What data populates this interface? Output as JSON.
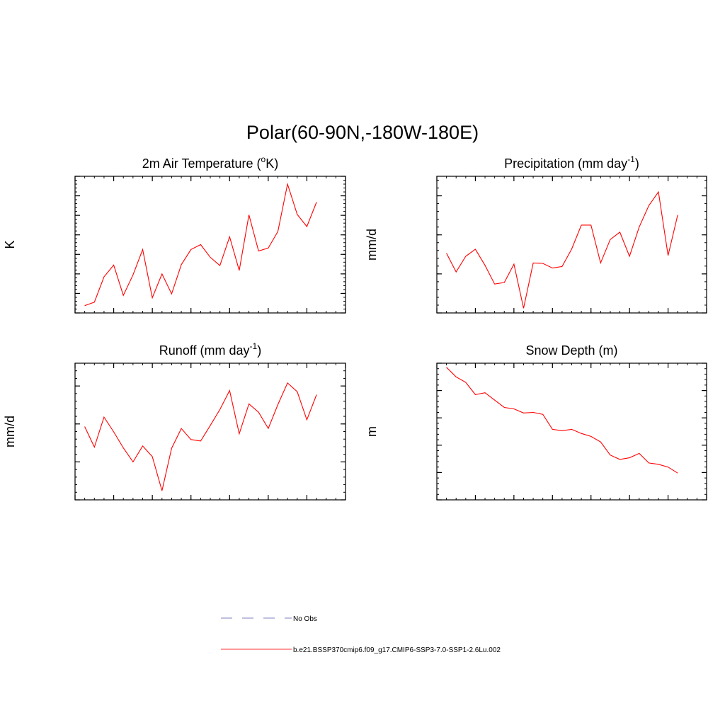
{
  "page": {
    "title": "Polar(60-90N,-180W-180E)"
  },
  "chart_data": [
    {
      "type": "line",
      "title": "2m Air Temperature (",
      "title_sup": "o",
      "title_tail": "K)",
      "ylabel": "K",
      "xlim": [
        2064,
        2092
      ],
      "ylim": [
        269.2,
        272.0
      ],
      "x_ticks": [
        "2064",
        "2068",
        "2072",
        "2076",
        "2080",
        "2084",
        "2088",
        "2092"
      ],
      "y_ticks": [
        "269.2",
        "269.6",
        "270.0",
        "270.4",
        "270.8",
        "271.2",
        "271.6",
        "272.0"
      ],
      "series": [
        {
          "x": [
            2065,
            2066,
            2067,
            2068,
            2069,
            2070,
            2071,
            2072,
            2073,
            2074,
            2075,
            2076,
            2077,
            2078,
            2079,
            2080,
            2081,
            2082,
            2083,
            2084,
            2085,
            2086,
            2087,
            2088,
            2089
          ],
          "values": [
            269.35,
            269.42,
            269.94,
            270.18,
            269.56,
            269.98,
            270.5,
            269.51,
            270.0,
            269.59,
            270.19,
            270.5,
            270.6,
            270.34,
            270.17,
            270.76,
            270.07,
            271.21,
            270.47,
            270.53,
            270.87,
            271.84,
            271.22,
            270.97,
            271.47
          ]
        }
      ]
    },
    {
      "type": "line",
      "title": "Precipitation (mm day",
      "title_sup": "-1",
      "title_tail": ")",
      "ylabel": "mm/d",
      "xlim": [
        2064,
        2092
      ],
      "ylim": [
        1.5,
        1.85
      ],
      "x_ticks": [
        "2064",
        "2068",
        "2072",
        "2076",
        "2080",
        "2084",
        "2088",
        "2092"
      ],
      "y_ticks": [
        "1.50",
        "1.60",
        "1.70",
        "1.80"
      ],
      "series": [
        {
          "x": [
            2065,
            2066,
            2067,
            2068,
            2069,
            2070,
            2071,
            2072,
            2073,
            2074,
            2075,
            2076,
            2077,
            2078,
            2079,
            2080,
            2081,
            2082,
            2083,
            2084,
            2085,
            2086,
            2087,
            2088,
            2089
          ],
          "values": [
            1.653,
            1.605,
            1.645,
            1.663,
            1.622,
            1.574,
            1.578,
            1.625,
            1.512,
            1.628,
            1.627,
            1.615,
            1.619,
            1.664,
            1.725,
            1.725,
            1.628,
            1.688,
            1.707,
            1.645,
            1.72,
            1.775,
            1.81,
            1.647,
            1.751
          ]
        }
      ]
    },
    {
      "type": "line",
      "title": "Runoff (mm day",
      "title_sup": "-1",
      "title_tail": ")",
      "ylabel": "mm/d",
      "xlim": [
        2064,
        2092
      ],
      "ylim": [
        0.9,
        1.26
      ],
      "x_ticks": [
        "2064",
        "2068",
        "2072",
        "2076",
        "2080",
        "2084",
        "2088",
        "2092"
      ],
      "y_ticks": [
        "0.90",
        "1.00",
        "1.10",
        "1.20"
      ],
      "series": [
        {
          "x": [
            2065,
            2066,
            2067,
            2068,
            2069,
            2070,
            2071,
            2072,
            2073,
            2074,
            2075,
            2076,
            2077,
            2078,
            2079,
            2080,
            2081,
            2082,
            2083,
            2084,
            2085,
            2086,
            2087,
            2088,
            2089
          ],
          "values": [
            1.093,
            1.039,
            1.118,
            1.079,
            1.037,
            1.0,
            1.042,
            1.014,
            0.924,
            1.036,
            1.088,
            1.059,
            1.055,
            1.096,
            1.138,
            1.188,
            1.074,
            1.153,
            1.131,
            1.088,
            1.151,
            1.208,
            1.185,
            1.111,
            1.177
          ]
        }
      ]
    },
    {
      "type": "line",
      "title": "Snow Depth (m)",
      "title_sup": "",
      "title_tail": "",
      "ylabel": "m",
      "xlim": [
        2064,
        2092
      ],
      "ylim": [
        1.6,
        2.1
      ],
      "x_ticks": [
        "2064",
        "2068",
        "2072",
        "2076",
        "2080",
        "2084",
        "2088",
        "2092"
      ],
      "y_ticks": [
        "1.60",
        "1.70",
        "1.80",
        "1.90",
        "2.00",
        "2.10"
      ],
      "series": [
        {
          "x": [
            2065,
            2066,
            2067,
            2068,
            2069,
            2070,
            2071,
            2072,
            2073,
            2074,
            2075,
            2076,
            2077,
            2078,
            2079,
            2080,
            2081,
            2082,
            2083,
            2084,
            2085,
            2086,
            2087,
            2088,
            2089
          ],
          "values": [
            2.085,
            2.05,
            2.03,
            1.985,
            1.992,
            1.965,
            1.938,
            1.933,
            1.918,
            1.92,
            1.913,
            1.858,
            1.853,
            1.858,
            1.843,
            1.832,
            1.812,
            1.764,
            1.748,
            1.754,
            1.77,
            1.735,
            1.73,
            1.72,
            1.698
          ]
        }
      ]
    }
  ],
  "legend": {
    "items": [
      {
        "label": "No Obs",
        "color": "#9999cc",
        "style": "dashed"
      },
      {
        "label": "b.e21.BSSP370cmip6.f09_g17.CMIP6-SSP3-7.0-SSP1-2.6Lu.002",
        "color": "#ff3333",
        "style": "solid"
      }
    ]
  },
  "colors": {
    "series_line": "#ff0000",
    "axis": "#000000"
  }
}
